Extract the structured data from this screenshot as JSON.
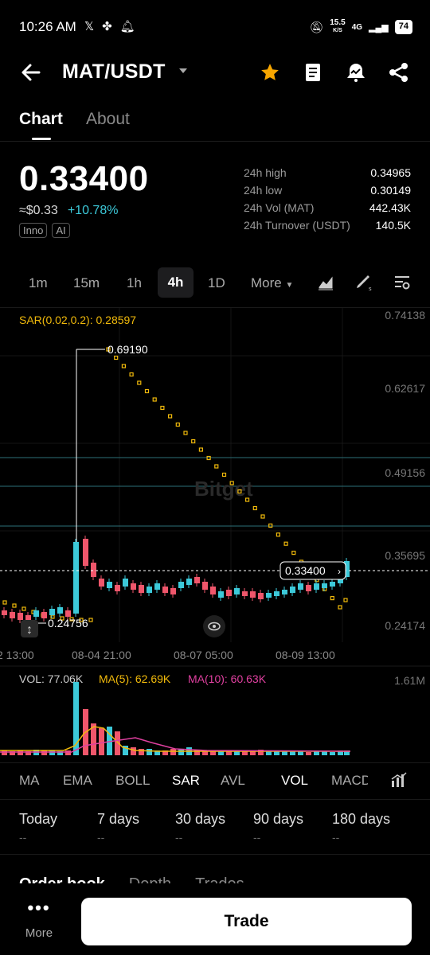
{
  "status": {
    "time": "10:26 AM",
    "net_speed_top": "15.5",
    "net_speed_bottom": "K/S",
    "network": "4G",
    "battery": "74"
  },
  "header": {
    "pair": "MAT/USDT"
  },
  "tabs": [
    {
      "label": "Chart"
    },
    {
      "label": "About"
    }
  ],
  "ticker": {
    "last_price": "0.33400",
    "fiat_price": "≈$0.33",
    "change": "+10.78%",
    "tags": [
      "Inno",
      "AI"
    ],
    "stats": [
      {
        "label": "24h high",
        "value": "0.34965"
      },
      {
        "label": "24h low",
        "value": "0.30149"
      },
      {
        "label": "24h Vol (MAT)",
        "value": "442.43K"
      },
      {
        "label": "24h Turnover (USDT)",
        "value": "140.5K"
      }
    ]
  },
  "timeframes": [
    "1m",
    "15m",
    "1h",
    "4h",
    "1D",
    "More"
  ],
  "chart": {
    "sar_label": "SAR(0.02,0.2): 0.28597",
    "watermark": "Bitget",
    "price_axis": [
      "0.74138",
      "0.62617",
      "0.49156",
      "0.35695",
      "0.24174"
    ],
    "high_marker": "0.69190",
    "low_marker": "0.24756",
    "current_price": "0.33400",
    "time_axis": [
      "2 13:00",
      "08-04 21:00",
      "08-07 05:00",
      "08-09 13:00"
    ],
    "volume_legend": {
      "vol": "VOL: 77.06K",
      "ma5": "MA(5): 62.69K",
      "ma10": "MA(10): 60.63K"
    },
    "volume_axis": "1.61M",
    "colors": {
      "up": "#3cc9d9",
      "down": "#f0566b",
      "sar": "#f0b90b",
      "ma5": "#f0b90b",
      "ma10": "#e040a0"
    }
  },
  "indicators": [
    "MA",
    "EMA",
    "BOLL",
    "SAR",
    "AVL",
    "VOL",
    "MACD"
  ],
  "periods": [
    {
      "label": "Today",
      "value": "--"
    },
    {
      "label": "7 days",
      "value": "--"
    },
    {
      "label": "30 days",
      "value": "--"
    },
    {
      "label": "90 days",
      "value": "--"
    },
    {
      "label": "180 days",
      "value": "--"
    }
  ],
  "order_tabs": [
    "Order book",
    "Depth",
    "Trades"
  ],
  "bottom": {
    "more_label": "More",
    "trade_label": "Trade"
  }
}
